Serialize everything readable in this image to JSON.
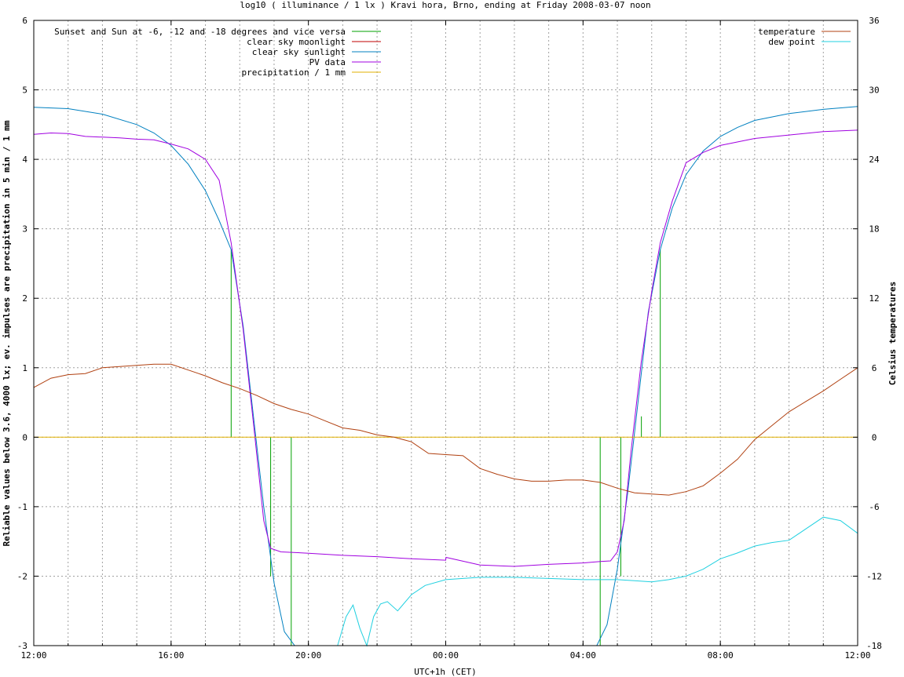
{
  "chart_data": {
    "type": "line",
    "title": "log10 ( illuminance / 1 lx ) Kravi hora, Brno, ending at Friday 2008-03-07 noon",
    "xlabel": "UTC+1h (CET)",
    "ylabel": "Reliable values below 3.6, 4000 lx; ev. impulses are precipitation in 5 min / 1 mm",
    "y2label": "Celsius temperatures",
    "x_unit": "hours since 12:00 (Thursday)",
    "xlim": [
      0,
      24
    ],
    "ylim": [
      -3,
      6
    ],
    "y2lim": [
      -18,
      36
    ],
    "grid": true,
    "x_ticks": [
      {
        "value": 0,
        "label": "12:00"
      },
      {
        "value": 4,
        "label": "16:00"
      },
      {
        "value": 8,
        "label": "20:00"
      },
      {
        "value": 12,
        "label": "00:00"
      },
      {
        "value": 16,
        "label": "04:00"
      },
      {
        "value": 20,
        "label": "08:00"
      },
      {
        "value": 24,
        "label": "12:00"
      }
    ],
    "y_ticks": [
      "-3",
      "-2",
      "-1",
      "0",
      "1",
      "2",
      "3",
      "4",
      "5",
      "6"
    ],
    "y2_ticks": [
      "-18",
      "-12",
      "-6",
      "0",
      "6",
      "12",
      "18",
      "24",
      "30",
      "36"
    ],
    "legend_left": [
      {
        "name": "Sunset and Sun at -6, -12 and -18 degrees and vice versa",
        "color": "#00a000"
      },
      {
        "name": "clear sky moonlight",
        "color": "#c00000"
      },
      {
        "name": "clear sky sunlight",
        "color": "#0080c0"
      },
      {
        "name": "PV data",
        "color": "#a000e0"
      },
      {
        "name": "precipitation / 1 mm",
        "color": "#e0b000"
      }
    ],
    "legend_right": [
      {
        "name": "temperature",
        "color": "#b04010"
      },
      {
        "name": "dew point",
        "color": "#20d0e0"
      }
    ],
    "sun_events": [
      {
        "x": 5.75,
        "y": 2.7
      },
      {
        "x": 6.3,
        "y": 0
      },
      {
        "x": 6.9,
        "y": -2.0
      },
      {
        "x": 7.5,
        "y": -3.0
      },
      {
        "x": 16.5,
        "y": -3.0
      },
      {
        "x": 17.1,
        "y": -2.0
      },
      {
        "x": 17.7,
        "y": 0.3
      },
      {
        "x": 18.25,
        "y": 2.7
      }
    ],
    "series": [
      {
        "name": "clear sky sunlight",
        "axis": "y",
        "color": "#0080c0",
        "x": [
          0,
          1,
          2,
          3,
          3.5,
          4,
          4.5,
          5,
          5.4,
          5.75,
          6.1,
          6.4,
          6.7,
          7.0,
          7.3,
          7.6,
          16.4,
          16.7,
          17.0,
          17.3,
          17.6,
          17.9,
          18.25,
          18.6,
          19.0,
          19.5,
          20,
          20.5,
          21,
          22,
          23,
          24
        ],
        "y": [
          4.75,
          4.73,
          4.65,
          4.5,
          4.38,
          4.2,
          3.93,
          3.55,
          3.12,
          2.7,
          1.6,
          0.3,
          -1.0,
          -2.1,
          -2.8,
          -3.0,
          -3.0,
          -2.7,
          -1.9,
          -0.8,
          0.5,
          1.8,
          2.7,
          3.3,
          3.78,
          4.12,
          4.33,
          4.46,
          4.56,
          4.66,
          4.72,
          4.76
        ]
      },
      {
        "name": "PV data",
        "axis": "y",
        "color": "#a000e0",
        "x": [
          0,
          0.5,
          1,
          1.5,
          2,
          2.5,
          3,
          3.5,
          4,
          4.5,
          5,
          5.4,
          5.75,
          6.1,
          6.4,
          6.7,
          6.9,
          7.2,
          8,
          9,
          10,
          11,
          12,
          12.01,
          13,
          14,
          15,
          16,
          16.5,
          16.8,
          17.0,
          17.2,
          17.4,
          17.7,
          18.0,
          18.25,
          18.6,
          19.0,
          19.5,
          20,
          21,
          22,
          23,
          24
        ],
        "y": [
          4.36,
          4.38,
          4.37,
          4.33,
          4.32,
          4.31,
          4.29,
          4.28,
          4.22,
          4.15,
          4.0,
          3.7,
          2.8,
          1.55,
          0.2,
          -1.2,
          -1.6,
          -1.65,
          -1.67,
          -1.7,
          -1.72,
          -1.75,
          -1.77,
          -1.73,
          -1.84,
          -1.86,
          -1.83,
          -1.81,
          -1.79,
          -1.78,
          -1.65,
          -1.2,
          -0.2,
          1.1,
          2.1,
          2.8,
          3.4,
          3.95,
          4.1,
          4.2,
          4.3,
          4.35,
          4.4,
          4.42
        ]
      },
      {
        "name": "precipitation / 1 mm",
        "axis": "y",
        "color": "#e0b000",
        "x": [
          0,
          24
        ],
        "y": [
          0,
          0
        ]
      },
      {
        "name": "temperature",
        "axis": "y2",
        "color": "#b04010",
        "x": [
          0,
          0.5,
          1,
          1.5,
          2,
          2.5,
          3,
          3.5,
          4,
          4.5,
          5,
          5.5,
          6,
          6.5,
          7,
          7.5,
          8,
          8.5,
          9,
          9.5,
          10,
          10.5,
          11,
          11.5,
          12,
          12.5,
          13,
          13.5,
          14,
          14.5,
          15,
          15.5,
          16,
          16.5,
          17,
          17.5,
          18,
          18.5,
          19,
          19.5,
          20,
          20.5,
          21,
          21.5,
          22,
          22.5,
          23,
          23.5,
          24
        ],
        "y": [
          4.3,
          5.1,
          5.4,
          5.5,
          6.0,
          6.1,
          6.2,
          6.3,
          6.3,
          5.8,
          5.3,
          4.7,
          4.2,
          3.6,
          2.9,
          2.4,
          2.0,
          1.4,
          0.8,
          0.6,
          0.2,
          0.0,
          -0.4,
          -1.4,
          -1.5,
          -1.6,
          -2.7,
          -3.2,
          -3.6,
          -3.8,
          -3.8,
          -3.7,
          -3.7,
          -3.9,
          -4.4,
          -4.8,
          -4.9,
          -5.0,
          -4.7,
          -4.2,
          -3.1,
          -1.9,
          -0.2,
          1.0,
          2.2,
          3.1,
          4.0,
          5.0,
          6.0
        ]
      },
      {
        "name": "dew point",
        "axis": "y2",
        "color": "#20d0e0",
        "x": [
          8.85,
          9.1,
          9.3,
          9.5,
          9.7,
          9.9,
          10.1,
          10.3,
          10.6,
          11.0,
          11.4,
          12,
          13,
          14,
          15,
          16,
          16.5,
          17,
          17.5,
          18,
          18.5,
          19,
          19.5,
          20,
          20.5,
          21,
          21.5,
          22,
          22.5,
          23,
          23.5,
          24
        ],
        "y": [
          -18.0,
          -15.5,
          -14.5,
          -16.5,
          -18.0,
          -15.5,
          -14.4,
          -14.2,
          -15.0,
          -13.6,
          -12.8,
          -12.3,
          -12.1,
          -12.1,
          -12.2,
          -12.3,
          -12.3,
          -12.3,
          -12.4,
          -12.5,
          -12.3,
          -12.0,
          -11.4,
          -10.5,
          -10.0,
          -9.4,
          -9.1,
          -8.9,
          -7.9,
          -6.9,
          -7.2,
          -8.3
        ]
      }
    ]
  }
}
